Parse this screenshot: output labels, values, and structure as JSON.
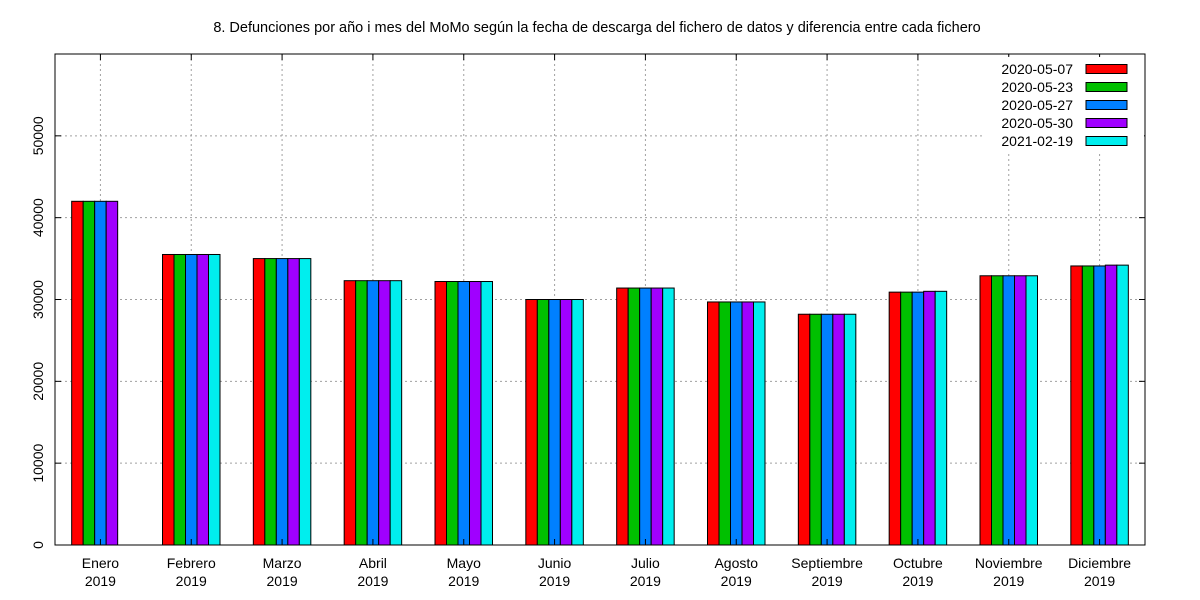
{
  "chart_data": {
    "type": "bar",
    "title": "8. Defunciones por año i mes del MoMo según la fecha de descarga del fichero de datos y diferencia entre cada fichero",
    "xlabel": "",
    "ylabel": "",
    "ylim": [
      0,
      60000
    ],
    "yticks": [
      0,
      10000,
      20000,
      30000,
      40000,
      50000
    ],
    "grid": true,
    "legend_position": "top-right",
    "categories": [
      [
        "Enero",
        "2019"
      ],
      [
        "Febrero",
        "2019"
      ],
      [
        "Marzo",
        "2019"
      ],
      [
        "Abril",
        "2019"
      ],
      [
        "Mayo",
        "2019"
      ],
      [
        "Junio",
        "2019"
      ],
      [
        "Julio",
        "2019"
      ],
      [
        "Agosto",
        "2019"
      ],
      [
        "Septiembre",
        "2019"
      ],
      [
        "Octubre",
        "2019"
      ],
      [
        "Noviembre",
        "2019"
      ],
      [
        "Diciembre",
        "2019"
      ]
    ],
    "series": [
      {
        "name": "2020-05-07",
        "color": "#ff0000",
        "values": [
          42000,
          35500,
          35000,
          32300,
          32200,
          30000,
          31400,
          29700,
          28200,
          30900,
          32900,
          34100
        ]
      },
      {
        "name": "2020-05-23",
        "color": "#00c000",
        "values": [
          42000,
          35500,
          35000,
          32300,
          32200,
          30000,
          31400,
          29700,
          28200,
          30900,
          32900,
          34100
        ]
      },
      {
        "name": "2020-05-27",
        "color": "#0080ff",
        "values": [
          42000,
          35500,
          35000,
          32300,
          32200,
          30000,
          31400,
          29700,
          28200,
          30900,
          32900,
          34100
        ]
      },
      {
        "name": "2020-05-30",
        "color": "#a000ff",
        "values": [
          42000,
          35500,
          35000,
          32300,
          32200,
          30000,
          31400,
          29700,
          28200,
          31000,
          32900,
          34200
        ]
      },
      {
        "name": "2021-02-19",
        "color": "#00eeee",
        "values": [
          null,
          35500,
          35000,
          32300,
          32200,
          30000,
          31400,
          29700,
          28200,
          31000,
          32900,
          34200
        ]
      }
    ]
  }
}
